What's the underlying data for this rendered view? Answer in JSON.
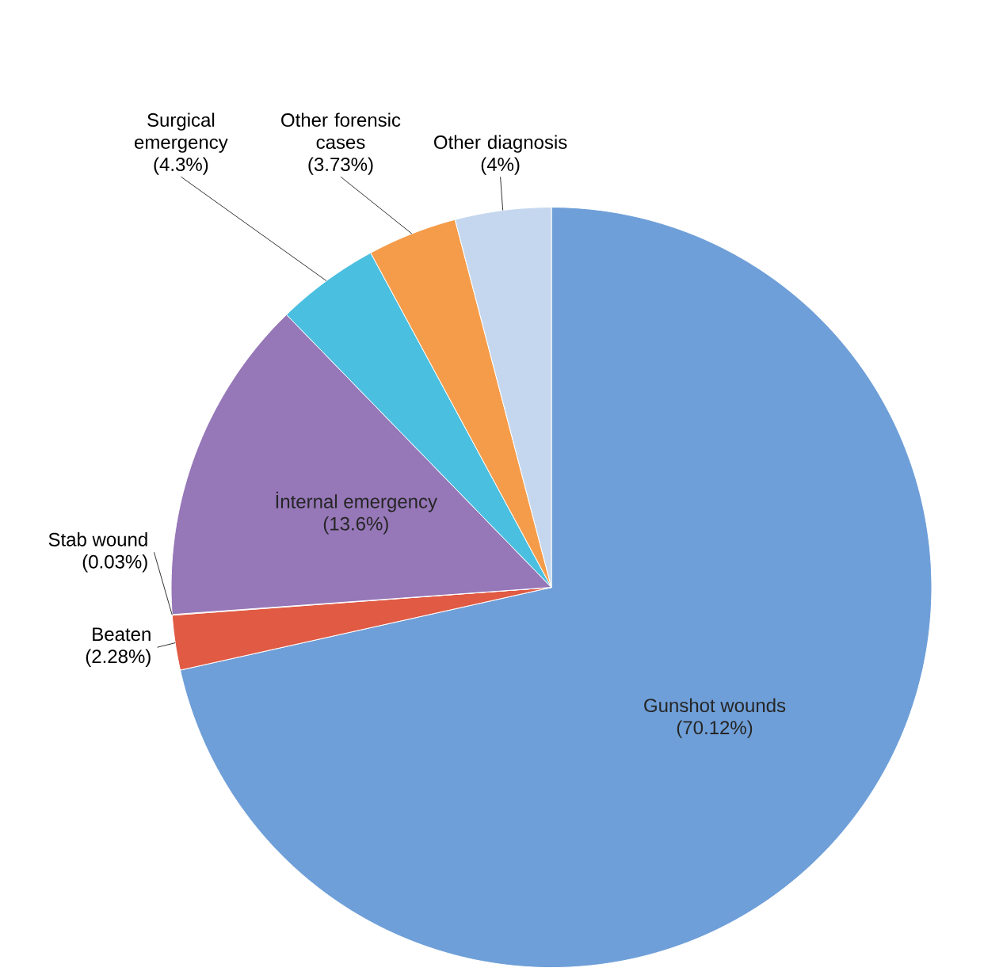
{
  "chart_data": {
    "type": "pie",
    "categories": [
      "Gunshot wounds",
      "Beaten",
      "Stab wound",
      "İnternal emergency",
      "Surgical emergency",
      "Other forensic cases",
      "Other diagnosis"
    ],
    "values": [
      70.12,
      2.28,
      0.03,
      13.6,
      4.3,
      3.73,
      4
    ],
    "value_labels": [
      "(70.12%)",
      "(2.28%)",
      "(0.03%)",
      "(13.6%)",
      "(4.3%)",
      "(3.73%)",
      "(4%)"
    ],
    "colors": [
      "#6f9fd8",
      "#e05a44",
      "#c0504d",
      "#9677b8",
      "#4bbfe0",
      "#f59c4a",
      "#c5d7ef"
    ]
  }
}
